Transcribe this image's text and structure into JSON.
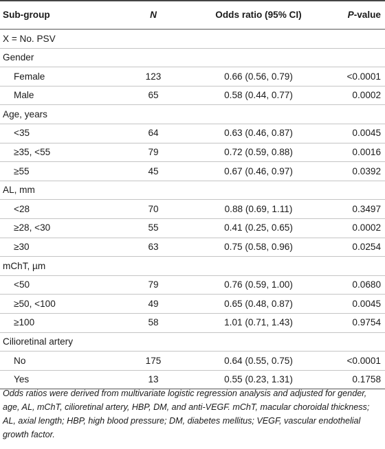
{
  "header": {
    "subgroup": "Sub-group",
    "n": "N",
    "or": "Odds ratio (95% CI)",
    "p_italic": "P",
    "p_rest": "-value"
  },
  "rows": [
    {
      "indent": false,
      "label": "X = No. PSV",
      "n": "",
      "or": "",
      "p": ""
    },
    {
      "indent": false,
      "label": "Gender",
      "n": "",
      "or": "",
      "p": ""
    },
    {
      "indent": true,
      "label": "Female",
      "n": "123",
      "or": "0.66 (0.56, 0.79)",
      "p": "<0.0001"
    },
    {
      "indent": true,
      "label": "Male",
      "n": "65",
      "or": "0.58 (0.44, 0.77)",
      "p": "0.0002"
    },
    {
      "indent": false,
      "label": "Age, years",
      "n": "",
      "or": "",
      "p": ""
    },
    {
      "indent": true,
      "label": "<35",
      "n": "64",
      "or": "0.63 (0.46, 0.87)",
      "p": "0.0045"
    },
    {
      "indent": true,
      "label": "≥35, <55",
      "n": "79",
      "or": "0.72 (0.59, 0.88)",
      "p": "0.0016"
    },
    {
      "indent": true,
      "label": "≥55",
      "n": "45",
      "or": "0.67 (0.46, 0.97)",
      "p": "0.0392"
    },
    {
      "indent": false,
      "label": "AL, mm",
      "n": "",
      "or": "",
      "p": ""
    },
    {
      "indent": true,
      "label": "<28",
      "n": "70",
      "or": "0.88 (0.69, 1.11)",
      "p": "0.3497"
    },
    {
      "indent": true,
      "label": "≥28, <30",
      "n": "55",
      "or": "0.41 (0.25, 0.65)",
      "p": "0.0002"
    },
    {
      "indent": true,
      "label": "≥30",
      "n": "63",
      "or": "0.75 (0.58, 0.96)",
      "p": "0.0254"
    },
    {
      "indent": false,
      "label": "mChT, µm",
      "n": "",
      "or": "",
      "p": ""
    },
    {
      "indent": true,
      "label": "<50",
      "n": "79",
      "or": "0.76 (0.59, 1.00)",
      "p": "0.0680"
    },
    {
      "indent": true,
      "label": "≥50, <100",
      "n": "49",
      "or": "0.65 (0.48, 0.87)",
      "p": "0.0045"
    },
    {
      "indent": true,
      "label": "≥100",
      "n": "58",
      "or": "1.01 (0.71, 1.43)",
      "p": "0.9754"
    },
    {
      "indent": false,
      "label": "Cilioretinal artery",
      "n": "",
      "or": "",
      "p": ""
    },
    {
      "indent": true,
      "label": "No",
      "n": "175",
      "or": "0.64 (0.55, 0.75)",
      "p": "<0.0001"
    },
    {
      "indent": true,
      "label": "Yes",
      "n": "13",
      "or": "0.55 (0.23, 1.31)",
      "p": "0.1758"
    }
  ],
  "footnote": "Odds ratios were derived from multivariate logistic regression analysis and adjusted for gender, age, AL, mChT, cilioretinal artery, HBP, DM, and anti-VEGF. mChT, macular choroidal thickness; AL, axial length; HBP, high blood pressure; DM, diabetes mellitus; VEGF, vascular endothelial growth factor."
}
